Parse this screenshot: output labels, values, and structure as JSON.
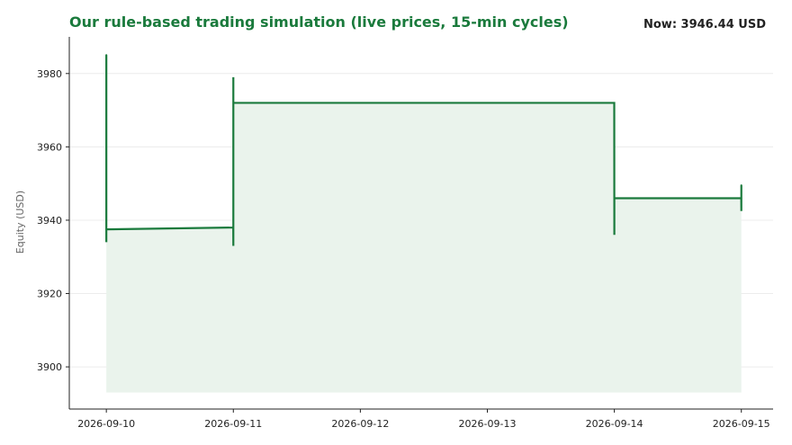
{
  "colors": {
    "accent": "#1a7a3c",
    "fill": "#eaf3ec",
    "grid": "#ececec",
    "axis": "#222222",
    "text": "#222222"
  },
  "chart_data": {
    "type": "line",
    "title": "Our rule-based trading simulation (live prices, 15-min cycles)",
    "now_label": "Now: 3946.44 USD",
    "xlabel": "",
    "ylabel": "Equity (USD)",
    "ylim": [
      3888.5,
      3990
    ],
    "xlim": [
      "2026-09-09T17:00",
      "2026-09-15T06:00"
    ],
    "grid": "horizontal",
    "fill_baseline": 3893,
    "yticks": [
      {
        "value": 3900,
        "label": "3900"
      },
      {
        "value": 3920,
        "label": "3920"
      },
      {
        "value": 3940,
        "label": "3940"
      },
      {
        "value": 3960,
        "label": "3960"
      },
      {
        "value": 3980,
        "label": "3980"
      }
    ],
    "xticks": [
      {
        "value": "2026-09-10",
        "label": "2026-09-10"
      },
      {
        "value": "2026-09-11",
        "label": "2026-09-11"
      },
      {
        "value": "2026-09-12",
        "label": "2026-09-12"
      },
      {
        "value": "2026-09-13",
        "label": "2026-09-13"
      },
      {
        "value": "2026-09-14",
        "label": "2026-09-14"
      },
      {
        "value": "2026-09-15",
        "label": "2026-09-15"
      }
    ],
    "series": [
      {
        "x": [
          "2026-09-10T00:00",
          "2026-09-10T00:00",
          "2026-09-10T00:00",
          "2026-09-10T00:00",
          "2026-09-10T23:59",
          "2026-09-11T00:00",
          "2026-09-11T00:00",
          "2026-09-11T00:00",
          "2026-09-13T23:59",
          "2026-09-14T00:00",
          "2026-09-14T00:00",
          "2026-09-14T23:59",
          "2026-09-15T00:00",
          "2026-09-15T00:00"
        ],
        "y": [
          3985,
          3934,
          3985,
          3937.5,
          3938,
          3933,
          3979,
          3972,
          3972,
          3936,
          3946,
          3946,
          3942.5,
          3949.5
        ]
      }
    ]
  }
}
